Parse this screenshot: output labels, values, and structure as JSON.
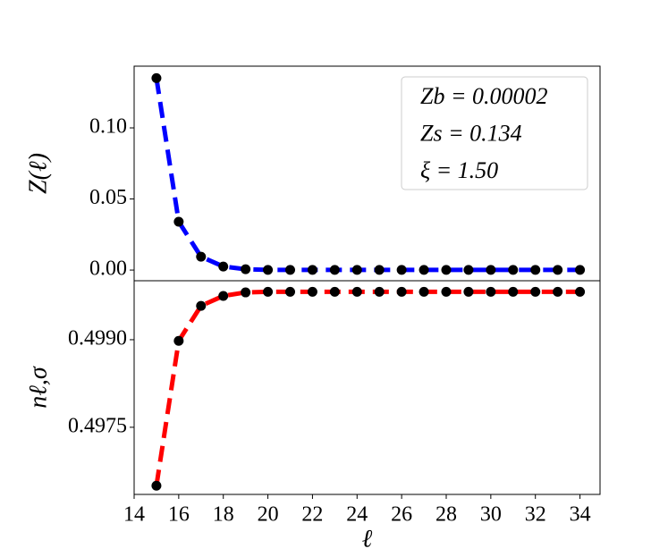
{
  "chart_data": [
    {
      "type": "line",
      "ylabel": "Z(ℓ)",
      "x": [
        15,
        16,
        17,
        18,
        19,
        20,
        21,
        22,
        23,
        24,
        25,
        26,
        27,
        28,
        29,
        30,
        31,
        32,
        33,
        34
      ],
      "series": [
        {
          "color": "#0000ff",
          "marker_color": "#000000",
          "values": [
            0.135,
            0.034,
            0.0094,
            0.0025,
            0.0006,
            0.0001,
            0.0001,
            0.0001,
            0.0001,
            0.0001,
            0.0001,
            0.0001,
            0.0001,
            0.0001,
            0.0001,
            0.0001,
            0.0001,
            0.0001,
            0.0001,
            0.0001
          ]
        }
      ],
      "xlim": [
        14,
        34.9
      ],
      "ylim": [
        -0.0075,
        0.1434
      ],
      "yticks": [
        {
          "value": 0,
          "label": "0.00"
        },
        0.05,
        {
          "value": 0.1,
          "label": "0.10"
        }
      ],
      "annotations": [
        "Zb = 0.00002",
        "Zs = 0.134",
        "ξ = 1.50"
      ]
    },
    {
      "type": "line",
      "ylabel": "nℓ,σ",
      "xlabel": "ℓ",
      "x": [
        15,
        16,
        17,
        18,
        19,
        20,
        21,
        22,
        23,
        24,
        25,
        26,
        27,
        28,
        29,
        30,
        31,
        32,
        33,
        34
      ],
      "series": [
        {
          "color": "#ff0000",
          "marker_color": "#000000",
          "values": [
            0.4965,
            0.49898,
            0.49958,
            0.49975,
            0.49981,
            0.49982,
            0.49982,
            0.49982,
            0.49982,
            0.49982,
            0.49982,
            0.49982,
            0.49982,
            0.49982,
            0.49982,
            0.49982,
            0.49982,
            0.49982,
            0.49982,
            0.49982
          ]
        }
      ],
      "xlim": [
        14,
        34.9
      ],
      "ylim": [
        0.49635,
        0.50001
      ],
      "xticks": [
        14,
        16,
        18,
        20,
        22,
        24,
        26,
        28,
        30,
        32,
        34
      ],
      "yticks": [
        {
          "value": 0.499,
          "label": "0.4990"
        },
        0.4975
      ]
    }
  ]
}
